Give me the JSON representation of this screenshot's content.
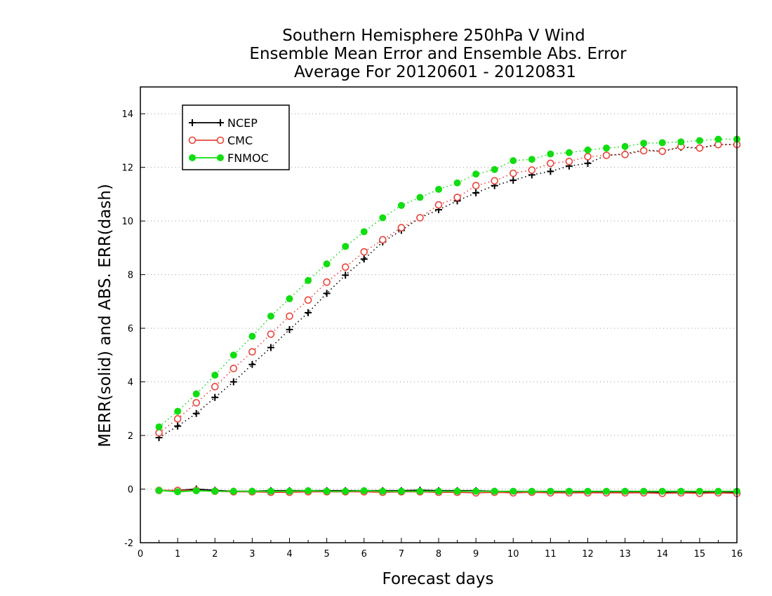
{
  "chart_data": {
    "type": "line",
    "title": [
      "Southern Hemisphere 250hPa V Wind",
      "Ensemble Mean Error and Ensemble Abs. Error",
      "Average For 20120601 - 20120831"
    ],
    "xlabel": "Forecast days",
    "ylabel": "MERR(solid) and ABS. ERR(dash)",
    "xlim": [
      0,
      16
    ],
    "ylim": [
      -2,
      15
    ],
    "x_ticks": [
      0,
      1,
      2,
      3,
      4,
      5,
      6,
      7,
      8,
      9,
      10,
      11,
      12,
      13,
      14,
      15,
      16
    ],
    "y_ticks": [
      -2,
      0,
      2,
      4,
      6,
      8,
      10,
      12,
      14
    ],
    "grid": "horizontal dotted",
    "legend_position": "top-left",
    "x": [
      0.5,
      1,
      1.5,
      2,
      2.5,
      3,
      3.5,
      4,
      4.5,
      5,
      5.5,
      6,
      6.5,
      7,
      7.5,
      8,
      8.5,
      9,
      9.5,
      10,
      10.5,
      11,
      11.5,
      12,
      12.5,
      13,
      13.5,
      14,
      14.5,
      15,
      15.5,
      16
    ],
    "series": [
      {
        "name": "NCEP",
        "color": "#000000",
        "marker": "plus",
        "abs_err": [
          1.92,
          2.35,
          2.82,
          3.42,
          4.0,
          4.65,
          5.28,
          5.95,
          6.58,
          7.3,
          7.98,
          8.58,
          9.22,
          9.65,
          10.12,
          10.42,
          10.75,
          11.05,
          11.32,
          11.52,
          11.72,
          11.85,
          12.05,
          12.15,
          12.45,
          12.5,
          12.65,
          12.6,
          12.75,
          12.72,
          12.85,
          12.85
        ],
        "mean_err": [
          -0.05,
          -0.05,
          0.0,
          -0.05,
          -0.08,
          -0.08,
          -0.06,
          -0.06,
          -0.06,
          -0.06,
          -0.06,
          -0.06,
          -0.06,
          -0.06,
          -0.04,
          -0.06,
          -0.06,
          -0.06,
          -0.08,
          -0.1,
          -0.1,
          -0.1,
          -0.12,
          -0.12,
          -0.12,
          -0.12,
          -0.12,
          -0.12,
          -0.12,
          -0.12,
          -0.12,
          -0.12
        ]
      },
      {
        "name": "CMC",
        "color": "#e8443a",
        "marker": "open-circle",
        "abs_err": [
          2.1,
          2.62,
          3.22,
          3.82,
          4.5,
          5.12,
          5.78,
          6.45,
          7.05,
          7.72,
          8.28,
          8.85,
          9.3,
          9.75,
          10.12,
          10.6,
          10.88,
          11.32,
          11.5,
          11.78,
          11.9,
          12.15,
          12.22,
          12.4,
          12.45,
          12.48,
          12.62,
          12.6,
          12.78,
          12.72,
          12.85,
          12.85
        ],
        "mean_err": [
          -0.05,
          -0.05,
          -0.05,
          -0.08,
          -0.1,
          -0.1,
          -0.12,
          -0.12,
          -0.1,
          -0.1,
          -0.1,
          -0.1,
          -0.12,
          -0.1,
          -0.1,
          -0.12,
          -0.12,
          -0.14,
          -0.12,
          -0.14,
          -0.12,
          -0.14,
          -0.14,
          -0.14,
          -0.14,
          -0.14,
          -0.14,
          -0.16,
          -0.14,
          -0.16,
          -0.14,
          -0.16
        ]
      },
      {
        "name": "FNMOC",
        "color": "#11dd11",
        "marker": "filled-circle",
        "abs_err": [
          2.32,
          2.9,
          3.55,
          4.25,
          5.0,
          5.7,
          6.45,
          7.1,
          7.78,
          8.4,
          9.05,
          9.6,
          10.12,
          10.58,
          10.88,
          11.18,
          11.42,
          11.75,
          11.92,
          12.25,
          12.3,
          12.5,
          12.55,
          12.65,
          12.72,
          12.78,
          12.9,
          12.92,
          12.95,
          13.0,
          13.05,
          13.05
        ],
        "mean_err": [
          -0.05,
          -0.1,
          -0.06,
          -0.08,
          -0.08,
          -0.08,
          -0.08,
          -0.08,
          -0.06,
          -0.08,
          -0.08,
          -0.06,
          -0.08,
          -0.08,
          -0.08,
          -0.08,
          -0.08,
          -0.08,
          -0.08,
          -0.08,
          -0.08,
          -0.08,
          -0.08,
          -0.08,
          -0.08,
          -0.08,
          -0.08,
          -0.08,
          -0.08,
          -0.08,
          -0.08,
          -0.08
        ]
      }
    ]
  }
}
